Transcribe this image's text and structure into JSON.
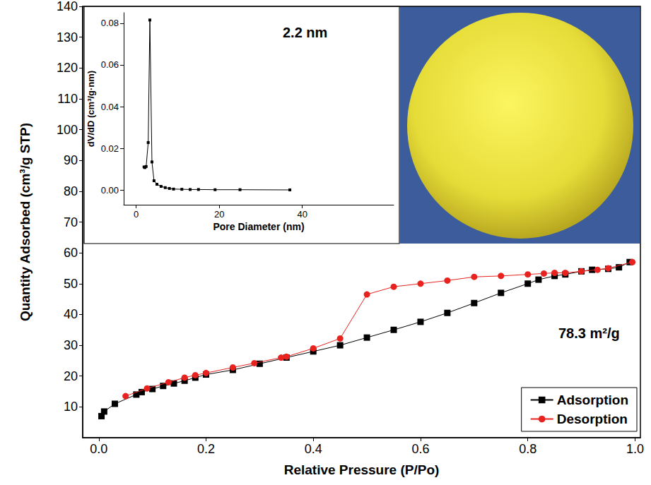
{
  "chart_data": [
    {
      "type": "line",
      "x_label": "Relative Pressure (P/Po)",
      "y_label": "Quantity Adsorbed (cm³/g STP)",
      "annotations": [
        "78.3 m²/g"
      ],
      "series": [
        {
          "name": "Adsorption",
          "color": "#000000",
          "marker": "square",
          "x": [
            0.005,
            0.01,
            0.03,
            0.07,
            0.08,
            0.1,
            0.12,
            0.14,
            0.16,
            0.18,
            0.2,
            0.25,
            0.3,
            0.35,
            0.4,
            0.45,
            0.5,
            0.55,
            0.6,
            0.65,
            0.7,
            0.75,
            0.8,
            0.82,
            0.85,
            0.87,
            0.9,
            0.92,
            0.95,
            0.97,
            0.99
          ],
          "values": [
            7,
            8.5,
            11,
            14,
            14.8,
            15.8,
            16.8,
            17.6,
            18.5,
            19.5,
            20.5,
            22,
            24,
            26,
            28,
            30,
            32.5,
            35,
            37.6,
            40.5,
            43.7,
            47,
            50,
            51.3,
            52.5,
            53,
            54,
            54.5,
            54.8,
            55.3,
            57
          ]
        },
        {
          "name": "Desorption",
          "color": "#e8231f",
          "marker": "circle",
          "x": [
            0.995,
            0.95,
            0.93,
            0.9,
            0.87,
            0.85,
            0.83,
            0.8,
            0.75,
            0.7,
            0.65,
            0.6,
            0.55,
            0.5,
            0.45,
            0.4,
            0.35,
            0.34,
            0.29,
            0.25,
            0.2,
            0.18,
            0.16,
            0.13,
            0.09,
            0.05
          ],
          "values": [
            57,
            55,
            54.5,
            54,
            53.5,
            53.5,
            53.3,
            53,
            52.5,
            52.2,
            51,
            50,
            49,
            46.5,
            32.2,
            29,
            26.3,
            26,
            24.2,
            22.8,
            21,
            20.3,
            19.5,
            18,
            16,
            13.5
          ]
        }
      ],
      "xlim": [
        -0.03,
        1.01
      ],
      "xticks": [
        {
          "value": 0,
          "label": "0.0"
        },
        0.2,
        0.4,
        0.6,
        0.8,
        {
          "value": 1,
          "label": "1.0"
        }
      ],
      "ylim": [
        0,
        140
      ],
      "yticks": [
        10,
        20,
        30,
        40,
        50,
        60,
        70,
        80,
        90,
        100,
        110,
        120,
        130,
        140
      ],
      "grid": false,
      "legend": "lower right"
    },
    {
      "type": "line",
      "x_label": "Pore Diameter (nm)",
      "y_label": "dV/dD (cm³/g·nm)",
      "annotations": [
        "2.2 nm"
      ],
      "series": [
        {
          "color": "#000000",
          "marker": "square",
          "x": [
            1.9,
            2.1,
            2.4,
            2.9,
            3.3,
            3.8,
            4.3,
            5,
            6,
            7,
            8,
            9,
            11,
            13,
            15,
            19,
            25,
            37
          ],
          "values": [
            0.0111,
            0.0108,
            0.0113,
            0.0228,
            0.0815,
            0.0135,
            0.0045,
            0.0028,
            0.0018,
            0.0012,
            0.0008,
            0.0005,
            0.0004,
            0.0003,
            0.0003,
            0.0002,
            0.0002,
            0.0001
          ]
        }
      ],
      "xlim": [
        -3,
        62
      ],
      "xticks": [
        0,
        20,
        40
      ],
      "ylim": [
        -0.007,
        0.085
      ],
      "yticks": [
        {
          "value": 0,
          "label": "0.00"
        },
        {
          "value": 0.02,
          "label": "0.02"
        },
        {
          "value": 0.04,
          "label": "0.04"
        },
        {
          "value": 0.06,
          "label": "0.06"
        },
        {
          "value": 0.08,
          "label": "0.08"
        }
      ],
      "grid": false
    }
  ]
}
